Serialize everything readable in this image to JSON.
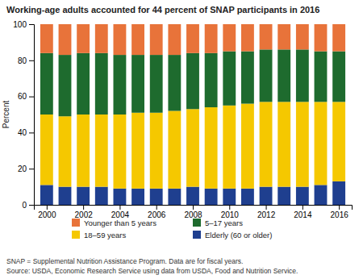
{
  "chart_data": {
    "type": "bar",
    "stacked": true,
    "title": "Working-age adults accounted for 44 percent of SNAP participants in 2016",
    "ylabel": "Percent",
    "x": [
      2000,
      2001,
      2002,
      2003,
      2004,
      2005,
      2006,
      2007,
      2008,
      2009,
      2010,
      2011,
      2012,
      2013,
      2014,
      2015,
      2016
    ],
    "xlim": [
      1999.3,
      2016.7
    ],
    "xticks": [
      2000,
      2002,
      2004,
      2006,
      2008,
      2010,
      2012,
      2014,
      2016
    ],
    "ylim": [
      0,
      100
    ],
    "yticks": [
      0,
      20,
      40,
      60,
      80,
      100
    ],
    "grid": false,
    "legend": "bottom",
    "series": [
      {
        "name": "Elderly (60 or older)",
        "color": "#1f3f8f",
        "values": [
          11,
          10,
          10,
          10,
          9,
          9,
          9,
          9,
          10,
          9,
          9,
          9,
          10,
          10,
          10,
          11,
          13
        ]
      },
      {
        "name": "18–59  years",
        "color": "#f5c800",
        "values": [
          39,
          39,
          40,
          40,
          41,
          42,
          42,
          43,
          43,
          45,
          46,
          47,
          47,
          47,
          47,
          46,
          44
        ]
      },
      {
        "name": "5–17 years",
        "color": "#1e6b2e",
        "values": [
          34,
          34,
          34,
          34,
          33,
          32,
          32,
          31,
          31,
          30,
          30,
          29,
          29,
          29,
          29,
          28,
          28
        ]
      },
      {
        "name": "Younger than 5 years",
        "color": "#e8733a",
        "values": [
          16,
          17,
          16,
          16,
          17,
          17,
          17,
          17,
          16,
          16,
          15,
          15,
          14,
          14,
          14,
          15,
          15
        ]
      }
    ],
    "annotations": [
      "SNAP = Supplemental Nutrition Assistance Program. Data are for fiscal years.",
      "Source: USDA, Economic Research Service using data from USDA, Food and Nutrition Service."
    ]
  }
}
